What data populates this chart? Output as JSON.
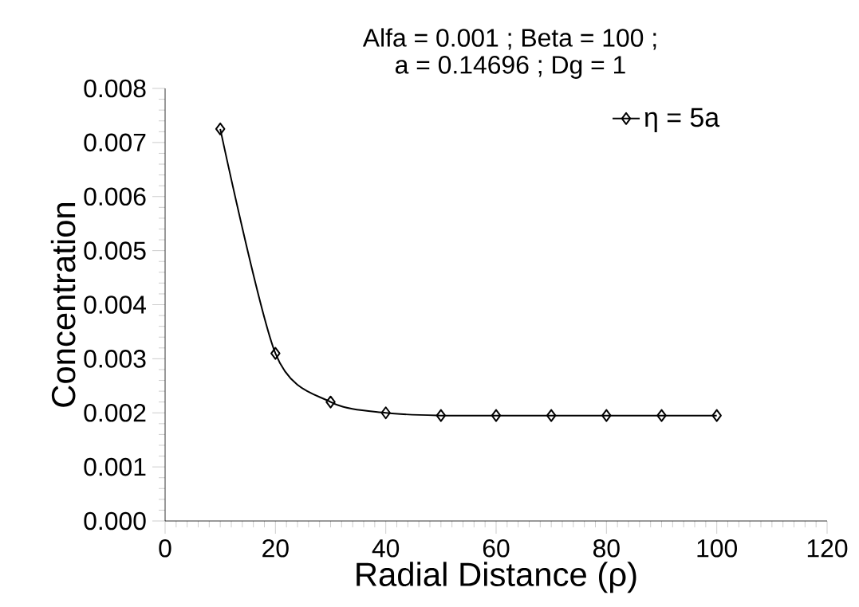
{
  "chart_data": {
    "type": "line",
    "title": "Alfa = 0.001 ; Beta = 100 ;",
    "subtitle": "a = 0.14696 ; Dg = 1",
    "xlabel": "Radial Distance (ρ)",
    "ylabel": "Concentration",
    "x": [
      10,
      20,
      30,
      40,
      50,
      60,
      70,
      80,
      90,
      100
    ],
    "series": [
      {
        "name": "η = 5a",
        "color": "#000000",
        "values": [
          0.00725,
          0.0031,
          0.0022,
          0.002,
          0.00195,
          0.00195,
          0.00195,
          0.00195,
          0.00195,
          0.00195
        ]
      }
    ],
    "xlim": [
      0,
      120
    ],
    "xticks": [
      0,
      20,
      40,
      60,
      80,
      100,
      120
    ],
    "ylim": [
      0,
      0.008
    ],
    "yticks": [
      {
        "value": 0,
        "label": "0.000"
      },
      {
        "value": 0.001,
        "label": "0.001"
      },
      {
        "value": 0.002,
        "label": "0.002"
      },
      {
        "value": 0.003,
        "label": "0.003"
      },
      {
        "value": 0.004,
        "label": "0.004"
      },
      {
        "value": 0.005,
        "label": "0.005"
      },
      {
        "value": 0.006,
        "label": "0.006"
      },
      {
        "value": 0.007,
        "label": "0.007"
      },
      {
        "value": 0.008,
        "label": "0.008"
      }
    ],
    "marker": "diamond",
    "line_style": "solid",
    "legend": "top right",
    "grid": false
  }
}
